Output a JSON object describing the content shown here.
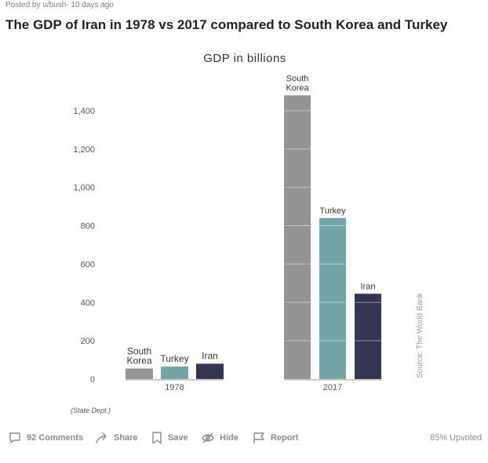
{
  "post": {
    "meta": "Posted by u/bush- 10 days ago",
    "title": "The GDP of Iran in 1978 vs 2017 compared to South Korea and Turkey"
  },
  "chart_data": {
    "type": "bar",
    "title": "GDP in billions",
    "xlabel": "",
    "ylabel": "",
    "ylim": [
      0,
      1400
    ],
    "yticks": [
      0,
      200,
      400,
      600,
      800,
      1000,
      1200,
      1400
    ],
    "ytick_labels": [
      "0",
      "200",
      "400",
      "600",
      "800",
      "1,000",
      "1,200",
      "1,400"
    ],
    "categories": [
      "1978",
      "2017"
    ],
    "series": [
      {
        "name": "South Korea",
        "color": "#939393",
        "values": [
          55,
          1480
        ]
      },
      {
        "name": "Turkey",
        "color": "#72a6a6",
        "values": [
          65,
          840
        ]
      },
      {
        "name": "Iran",
        "color": "#333653",
        "values": [
          80,
          445
        ]
      }
    ],
    "bar_labels": [
      [
        "South Korea",
        "Turkey",
        "Iran"
      ],
      [
        "South Korea",
        "Turkey",
        "Iran"
      ]
    ],
    "source": "Source: The World Bank",
    "note": "(State Dept.)",
    "grid": true
  },
  "actions": {
    "comments": "92 Comments",
    "share": "Share",
    "save": "Save",
    "hide": "Hide",
    "report": "Report",
    "upvoted": "85% Upvoted"
  },
  "icons": [
    "comment-icon",
    "share-icon",
    "save-icon",
    "hide-icon",
    "report-icon"
  ]
}
